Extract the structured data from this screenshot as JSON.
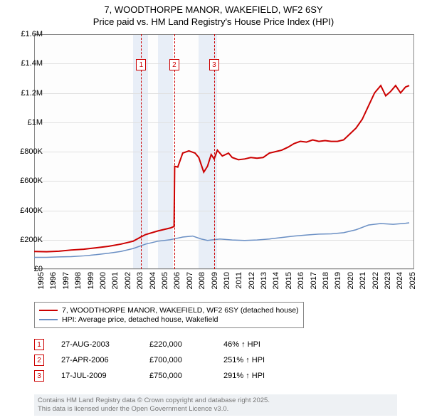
{
  "title": {
    "line1": "7, WOODTHORPE MANOR, WAKEFIELD, WF2 6SY",
    "line2": "Price paid vs. HM Land Registry's House Price Index (HPI)"
  },
  "chart": {
    "type": "line",
    "background_color": "#fdfdfd",
    "grid_color": "#e0e0e0",
    "axis_color": "#888888",
    "x": {
      "min": 1995,
      "max": 2025.7,
      "ticks": [
        1995,
        1996,
        1997,
        1998,
        1999,
        2000,
        2001,
        2002,
        2003,
        2004,
        2005,
        2006,
        2007,
        2008,
        2009,
        2010,
        2011,
        2012,
        2013,
        2014,
        2015,
        2016,
        2017,
        2018,
        2019,
        2020,
        2021,
        2022,
        2023,
        2024,
        2025
      ],
      "tick_labels": [
        "1995",
        "1996",
        "1997",
        "1998",
        "1999",
        "2000",
        "2001",
        "2002",
        "2003",
        "2004",
        "2005",
        "2006",
        "2007",
        "2008",
        "2009",
        "2010",
        "2011",
        "2012",
        "2013",
        "2014",
        "2015",
        "2016",
        "2017",
        "2018",
        "2019",
        "2020",
        "2021",
        "2022",
        "2023",
        "2024",
        "2025"
      ],
      "label_fontsize": 11,
      "rotation": -90
    },
    "y": {
      "min": 0,
      "max": 1600000,
      "ticks": [
        0,
        200000,
        400000,
        600000,
        800000,
        1000000,
        1200000,
        1400000,
        1600000
      ],
      "tick_labels": [
        "£0",
        "£200K",
        "£400K",
        "£600K",
        "£800K",
        "£1M",
        "£1.2M",
        "£1.4M",
        "£1.6M"
      ],
      "label_fontsize": 11
    },
    "shaded_ranges": [
      {
        "from": 2003.0,
        "to": 2004.2,
        "color": "#e8eef7"
      },
      {
        "from": 2005.0,
        "to": 2006.2,
        "color": "#e8eef7"
      },
      {
        "from": 2008.3,
        "to": 2009.8,
        "color": "#e8eef7"
      }
    ],
    "sale_markers": [
      {
        "n": "1",
        "x": 2003.65,
        "box_y": 1430000
      },
      {
        "n": "2",
        "x": 2006.32,
        "box_y": 1430000
      },
      {
        "n": "3",
        "x": 2009.54,
        "box_y": 1430000
      }
    ],
    "vline_color": "#cc0000",
    "marker_box_border": "#cc0000",
    "marker_box_text": "#cc0000",
    "series": [
      {
        "name": "7, WOODTHORPE MANOR, WAKEFIELD, WF2 6SY (detached house)",
        "color": "#cc0000",
        "line_width": 2,
        "points": [
          [
            1995.0,
            120000
          ],
          [
            1996.0,
            118000
          ],
          [
            1997.0,
            122000
          ],
          [
            1998.0,
            130000
          ],
          [
            1999.0,
            135000
          ],
          [
            2000.0,
            145000
          ],
          [
            2001.0,
            155000
          ],
          [
            2002.0,
            170000
          ],
          [
            2003.0,
            190000
          ],
          [
            2003.65,
            220000
          ],
          [
            2004.0,
            235000
          ],
          [
            2005.0,
            260000
          ],
          [
            2006.0,
            280000
          ],
          [
            2006.3,
            290000
          ],
          [
            2006.35,
            700000
          ],
          [
            2006.6,
            695000
          ],
          [
            2007.0,
            790000
          ],
          [
            2007.5,
            805000
          ],
          [
            2008.0,
            790000
          ],
          [
            2008.3,
            760000
          ],
          [
            2008.7,
            660000
          ],
          [
            2009.0,
            700000
          ],
          [
            2009.3,
            780000
          ],
          [
            2009.54,
            750000
          ],
          [
            2009.8,
            810000
          ],
          [
            2010.2,
            770000
          ],
          [
            2010.7,
            790000
          ],
          [
            2011.0,
            760000
          ],
          [
            2011.5,
            745000
          ],
          [
            2012.0,
            750000
          ],
          [
            2012.5,
            760000
          ],
          [
            2013.0,
            755000
          ],
          [
            2013.5,
            760000
          ],
          [
            2014.0,
            790000
          ],
          [
            2014.5,
            800000
          ],
          [
            2015.0,
            810000
          ],
          [
            2015.5,
            830000
          ],
          [
            2016.0,
            855000
          ],
          [
            2016.5,
            870000
          ],
          [
            2017.0,
            865000
          ],
          [
            2017.5,
            880000
          ],
          [
            2018.0,
            870000
          ],
          [
            2018.5,
            875000
          ],
          [
            2019.0,
            870000
          ],
          [
            2019.5,
            870000
          ],
          [
            2020.0,
            880000
          ],
          [
            2020.5,
            920000
          ],
          [
            2021.0,
            960000
          ],
          [
            2021.5,
            1020000
          ],
          [
            2022.0,
            1110000
          ],
          [
            2022.5,
            1200000
          ],
          [
            2023.0,
            1250000
          ],
          [
            2023.4,
            1180000
          ],
          [
            2023.8,
            1210000
          ],
          [
            2024.2,
            1250000
          ],
          [
            2024.6,
            1200000
          ],
          [
            2025.0,
            1240000
          ],
          [
            2025.3,
            1250000
          ]
        ]
      },
      {
        "name": "HPI: Average price, detached house, Wakefield",
        "color": "#6a8fc4",
        "line_width": 1.5,
        "points": [
          [
            1995.0,
            80000
          ],
          [
            1996.0,
            80000
          ],
          [
            1997.0,
            83000
          ],
          [
            1998.0,
            85000
          ],
          [
            1999.0,
            90000
          ],
          [
            2000.0,
            98000
          ],
          [
            2001.0,
            108000
          ],
          [
            2002.0,
            120000
          ],
          [
            2003.0,
            140000
          ],
          [
            2004.0,
            170000
          ],
          [
            2005.0,
            190000
          ],
          [
            2006.0,
            200000
          ],
          [
            2007.0,
            218000
          ],
          [
            2007.8,
            225000
          ],
          [
            2008.5,
            205000
          ],
          [
            2009.0,
            195000
          ],
          [
            2010.0,
            205000
          ],
          [
            2011.0,
            198000
          ],
          [
            2012.0,
            195000
          ],
          [
            2013.0,
            198000
          ],
          [
            2014.0,
            205000
          ],
          [
            2015.0,
            215000
          ],
          [
            2016.0,
            225000
          ],
          [
            2017.0,
            232000
          ],
          [
            2018.0,
            238000
          ],
          [
            2019.0,
            240000
          ],
          [
            2020.0,
            248000
          ],
          [
            2021.0,
            268000
          ],
          [
            2022.0,
            300000
          ],
          [
            2023.0,
            310000
          ],
          [
            2024.0,
            305000
          ],
          [
            2025.0,
            312000
          ],
          [
            2025.3,
            315000
          ]
        ]
      }
    ]
  },
  "legend": {
    "border_color": "#888888",
    "items": [
      {
        "label": "7, WOODTHORPE MANOR, WAKEFIELD, WF2 6SY (detached house)",
        "color": "#cc0000"
      },
      {
        "label": "HPI: Average price, detached house, Wakefield",
        "color": "#6a8fc4"
      }
    ]
  },
  "sales_table": {
    "rows": [
      {
        "n": "1",
        "date": "27-AUG-2003",
        "price": "£220,000",
        "pct": "46% ↑ HPI"
      },
      {
        "n": "2",
        "date": "27-APR-2006",
        "price": "£700,000",
        "pct": "251% ↑ HPI"
      },
      {
        "n": "3",
        "date": "17-JUL-2009",
        "price": "£750,000",
        "pct": "291% ↑ HPI"
      }
    ]
  },
  "footer": {
    "line1": "Contains HM Land Registry data © Crown copyright and database right 2025.",
    "line2": "This data is licensed under the Open Government Licence v3.0.",
    "background": "#eef1f4",
    "text_color": "#777777"
  }
}
